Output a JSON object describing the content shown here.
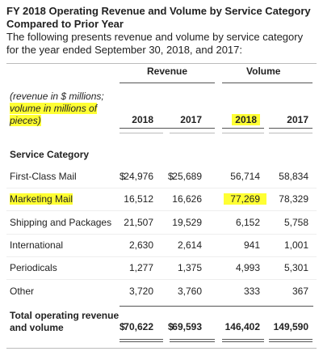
{
  "header": {
    "title": "FY 2018 Operating Revenue and Volume by Service Category Compared to Prior Year",
    "intro": "The following presents revenue and volume by service category for the year ended September 30, 2018, and 2017:"
  },
  "table": {
    "group_headers": [
      "Revenue",
      "Volume"
    ],
    "note_line1": "(revenue in $ millions;",
    "note_highlighted": [
      "volume in millions of",
      "pieces)"
    ],
    "years": [
      "2018",
      "2017",
      "2018",
      "2017"
    ],
    "section": "Service Category",
    "rows": [
      {
        "label": "First-Class Mail",
        "currency": "$",
        "cells": [
          "24,976",
          "25,689",
          "56,714",
          "58,834"
        ]
      },
      {
        "label": "Marketing Mail",
        "cells": [
          "16,512",
          "16,626",
          "77,269",
          "78,329"
        ]
      },
      {
        "label": "Shipping and Packages",
        "cells": [
          "21,507",
          "19,529",
          "6,152",
          "5,758"
        ]
      },
      {
        "label": "International",
        "cells": [
          "2,630",
          "2,614",
          "941",
          "1,001"
        ]
      },
      {
        "label": "Periodicals",
        "cells": [
          "1,277",
          "1,375",
          "4,993",
          "5,301"
        ]
      },
      {
        "label": "Other",
        "cells": [
          "3,720",
          "3,760",
          "333",
          "367"
        ]
      }
    ],
    "total": {
      "label": [
        "Total operating revenue",
        "and volume"
      ],
      "currency": "$",
      "cells": [
        "70,622",
        "69,593",
        "146,402",
        "149,590"
      ]
    }
  }
}
